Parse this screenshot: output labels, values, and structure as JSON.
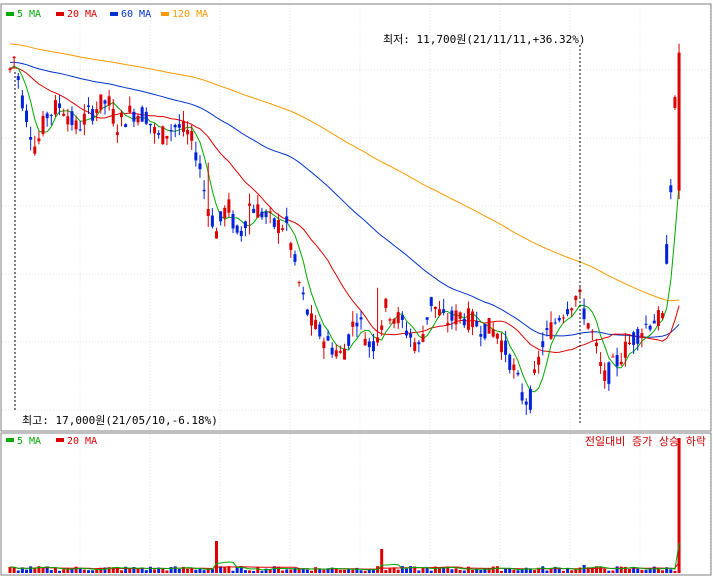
{
  "chart_data": [
    {
      "type": "candlestick",
      "panel": "price",
      "legend": [
        {
          "label": "5 MA",
          "color": "#00aa00"
        },
        {
          "label": "20 MA",
          "color": "#dd0000"
        },
        {
          "label": "60 MA",
          "color": "#0033cc"
        },
        {
          "label": "120 MA",
          "color": "#ff9900"
        }
      ],
      "annotations": {
        "low": "최저: 11,700원(21/11/11,+36.32%)",
        "high": "최고: 17,000원(21/05/10,-6.18%)"
      },
      "ylim": [
        11500,
        17300
      ],
      "low_value": 11700,
      "high_value": 17000,
      "last_close": 15950,
      "colors": {
        "up": "#dd0000",
        "down": "#0022dd"
      },
      "grid": true,
      "legend_position": "top-left"
    },
    {
      "type": "bar",
      "panel": "volume",
      "legend": [
        {
          "label": "5 MA",
          "color": "#00aa00"
        },
        {
          "label": "20 MA",
          "color": "#dd0000"
        }
      ],
      "caption": "전일대비 증가 상승 하락",
      "legend_position": "top-left"
    }
  ]
}
